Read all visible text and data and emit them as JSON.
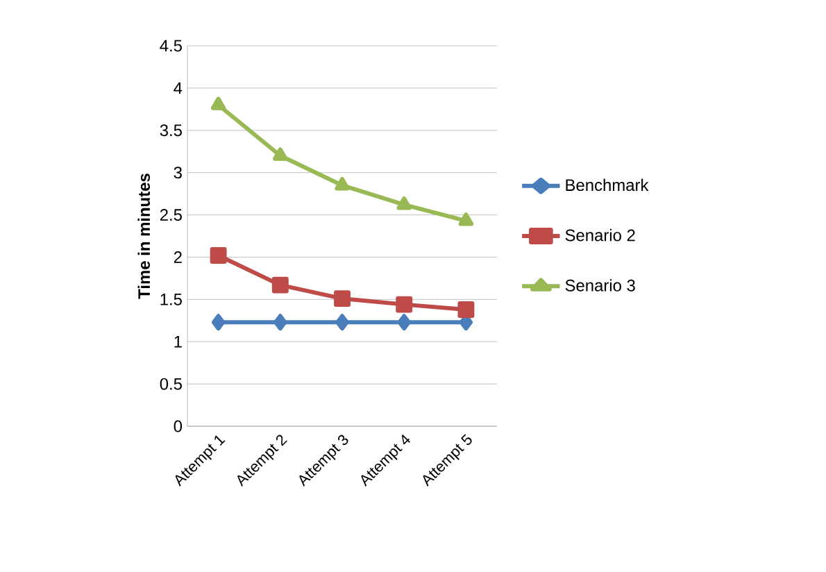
{
  "chart_data": {
    "type": "line",
    "ylabel": "Time in minutes",
    "categories": [
      "Attempt 1",
      "Attempt 2",
      "Attempt 3",
      "Attempt 4",
      "Attempt 5"
    ],
    "series": [
      {
        "name": "Benchmark",
        "color": "#4a7ebb",
        "marker": "diamond",
        "values": [
          1.23,
          1.23,
          1.23,
          1.23,
          1.23
        ]
      },
      {
        "name": "Senario 2",
        "color": "#be4b48",
        "marker": "square",
        "values": [
          2.02,
          1.67,
          1.51,
          1.44,
          1.38
        ]
      },
      {
        "name": "Senario 3",
        "color": "#98b954",
        "marker": "triangle",
        "values": [
          3.8,
          3.2,
          2.85,
          2.62,
          2.43
        ]
      }
    ],
    "ylim": [
      0,
      4.5
    ],
    "yticks": [
      0,
      0.5,
      1,
      1.5,
      2,
      2.5,
      3,
      3.5,
      4,
      4.5
    ],
    "grid": "y",
    "legend": "right"
  }
}
